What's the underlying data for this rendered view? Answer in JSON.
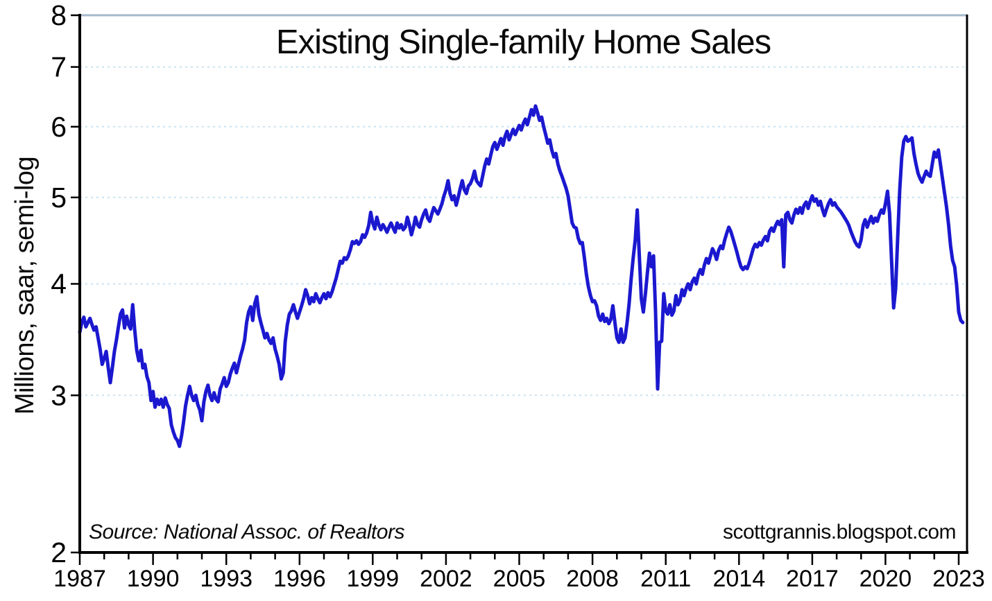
{
  "figure": {
    "title": "Existing Single-family Home Sales",
    "y_axis_label": "Millions, saar, semi-log",
    "source_note": "Source:  National Assoc. of Realtors",
    "site_credit": "scottgrannis.blogspot.com"
  },
  "chart_data": {
    "type": "line",
    "title": "Existing Single-family Home Sales",
    "xlabel": "",
    "ylabel": "Millions, saar, semi-log",
    "y_scale": "log",
    "ylim": [
      2,
      8
    ],
    "xlim": [
      1987,
      2023.34
    ],
    "y_ticks": [
      2,
      3,
      4,
      5,
      6,
      7,
      8
    ],
    "y_gridlines_dashed": [
      3,
      4,
      5,
      6,
      7
    ],
    "y_top_frame_value": 8,
    "x_minor_tick_step_years": 1,
    "x_label_years": [
      1987,
      1990,
      1993,
      1996,
      1999,
      2002,
      2005,
      2008,
      2011,
      2014,
      2017,
      2020,
      2023
    ],
    "grid": true,
    "legend_position": "none",
    "annotations": [
      "Source:  National Assoc. of Realtors",
      "scottgrannis.blogspot.com"
    ],
    "colors": {
      "line": "#1b18cf",
      "grid_dashed": "#c9e2f0",
      "frame_top": "#a6b9cb",
      "axis": "#000000",
      "text": "#000000",
      "background": "#ffffff"
    },
    "series": [
      {
        "name": "Existing single-family home sales (millions, saar)",
        "frequency": "monthly",
        "start_year": 1987,
        "values_monthly_by_year": [
          [
            3.53,
            3.62,
            3.67,
            3.58,
            3.62,
            3.66,
            3.6,
            3.55,
            3.58,
            3.48,
            3.38,
            3.25
          ],
          [
            3.3,
            3.36,
            3.22,
            3.1,
            3.22,
            3.36,
            3.46,
            3.58,
            3.7,
            3.74,
            3.57,
            3.68
          ],
          [
            3.6,
            3.56,
            3.79,
            3.55,
            3.37,
            3.28,
            3.37,
            3.22,
            3.25,
            3.15,
            3.1,
            2.96
          ],
          [
            3.03,
            2.91,
            2.97,
            2.93,
            2.97,
            2.91,
            2.98,
            2.93,
            2.9,
            2.78,
            2.73,
            2.69
          ],
          [
            2.67,
            2.63,
            2.7,
            2.8,
            2.92,
            3.0,
            3.07,
            3.0,
            2.96,
            3.0,
            2.93,
            2.89
          ],
          [
            2.81,
            2.95,
            3.03,
            3.08,
            3.0,
            2.96,
            3.02,
            2.97,
            2.95,
            3.05,
            3.09,
            3.14
          ],
          [
            3.07,
            3.1,
            3.17,
            3.22,
            3.26,
            3.18,
            3.25,
            3.32,
            3.38,
            3.46,
            3.62,
            3.72
          ],
          [
            3.77,
            3.64,
            3.8,
            3.87,
            3.7,
            3.62,
            3.55,
            3.48,
            3.52,
            3.46,
            3.43,
            3.48
          ],
          [
            3.38,
            3.32,
            3.25,
            3.13,
            3.18,
            3.45,
            3.6,
            3.7,
            3.73,
            3.79,
            3.72,
            3.66
          ],
          [
            3.72,
            3.78,
            3.85,
            3.94,
            3.88,
            3.8,
            3.86,
            3.82,
            3.9,
            3.85,
            3.81,
            3.86
          ],
          [
            3.9,
            3.85,
            3.91,
            3.87,
            3.92,
            3.99,
            4.06,
            4.15,
            4.24,
            4.22,
            4.28,
            4.26
          ],
          [
            4.3,
            4.37,
            4.46,
            4.44,
            4.47,
            4.43,
            4.46,
            4.54,
            4.51,
            4.56,
            4.65,
            4.81
          ],
          [
            4.68,
            4.61,
            4.75,
            4.66,
            4.6,
            4.66,
            4.62,
            4.57,
            4.63,
            4.68,
            4.62,
            4.57
          ],
          [
            4.68,
            4.62,
            4.66,
            4.6,
            4.63,
            4.75,
            4.66,
            4.54,
            4.63,
            4.75,
            4.66,
            4.63
          ],
          [
            4.72,
            4.79,
            4.84,
            4.74,
            4.7,
            4.79,
            4.87,
            4.83,
            4.79,
            4.85,
            4.92,
            5.02
          ],
          [
            5.1,
            5.22,
            5.05,
            4.97,
            5.02,
            4.9,
            5.0,
            5.12,
            5.22,
            5.1,
            5.05,
            5.15
          ],
          [
            5.18,
            5.25,
            5.35,
            5.22,
            5.18,
            5.15,
            5.28,
            5.42,
            5.52,
            5.45,
            5.58,
            5.7
          ],
          [
            5.76,
            5.66,
            5.74,
            5.82,
            5.72,
            5.85,
            5.93,
            5.8,
            5.88,
            5.96,
            5.88,
            5.95
          ],
          [
            6.02,
            5.95,
            6.05,
            6.12,
            6.03,
            6.15,
            6.27,
            6.18,
            6.33,
            6.22,
            6.1,
            6.15
          ],
          [
            6.0,
            5.88,
            5.75,
            5.8,
            5.65,
            5.55,
            5.6,
            5.45,
            5.35,
            5.28,
            5.2,
            5.12
          ],
          [
            5.02,
            4.85,
            4.68,
            4.63,
            4.62,
            4.5,
            4.44,
            4.45,
            4.28,
            4.1,
            3.97,
            3.88
          ],
          [
            3.82,
            3.83,
            3.78,
            3.68,
            3.64,
            3.7,
            3.63,
            3.66,
            3.61,
            3.65,
            3.78,
            3.62
          ],
          [
            3.48,
            3.44,
            3.56,
            3.44,
            3.48,
            3.62,
            3.8,
            4.05,
            4.28,
            4.48,
            4.84,
            4.3
          ],
          [
            3.85,
            3.72,
            3.9,
            4.12,
            4.33,
            4.18,
            4.3,
            3.72,
            3.05,
            3.44,
            3.45,
            3.9
          ],
          [
            3.73,
            3.7,
            3.79,
            3.69,
            3.73,
            3.88,
            3.79,
            3.83,
            3.94,
            3.88,
            3.95,
            4.0
          ],
          [
            3.94,
            4.02,
            4.06,
            4.0,
            4.1,
            4.15,
            4.1,
            4.2,
            4.27,
            4.22,
            4.3,
            4.38
          ],
          [
            4.33,
            4.26,
            4.36,
            4.41,
            4.38,
            4.48,
            4.56,
            4.63,
            4.58,
            4.5,
            4.42,
            4.34
          ],
          [
            4.25,
            4.18,
            4.15,
            4.18,
            4.16,
            4.22,
            4.3,
            4.38,
            4.43,
            4.4,
            4.45,
            4.42
          ],
          [
            4.48,
            4.52,
            4.47,
            4.58,
            4.62,
            4.58,
            4.65,
            4.7,
            4.66,
            4.72,
            4.18,
            4.78
          ],
          [
            4.81,
            4.72,
            4.68,
            4.78,
            4.85,
            4.8,
            4.87,
            4.8,
            4.9,
            4.94,
            4.86,
            4.95
          ],
          [
            5.02,
            4.95,
            4.98,
            4.9,
            4.95,
            4.85,
            4.77,
            4.85,
            4.92,
            4.97,
            4.9,
            4.93
          ],
          [
            4.88,
            4.85,
            4.82,
            4.78,
            4.74,
            4.7,
            4.65,
            4.58,
            4.52,
            4.46,
            4.42,
            4.4
          ],
          [
            4.48,
            4.65,
            4.72,
            4.63,
            4.7,
            4.76,
            4.68,
            4.74,
            4.7,
            4.78,
            4.84,
            4.8
          ],
          [
            4.92,
            5.08,
            4.8,
            4.25,
            3.76,
            3.95,
            4.5,
            5.1,
            5.55,
            5.78,
            5.85,
            5.78
          ],
          [
            5.8,
            5.83,
            5.6,
            5.45,
            5.32,
            5.25,
            5.2,
            5.28,
            5.35,
            5.3,
            5.28,
            5.45
          ],
          [
            5.62,
            5.55,
            5.65,
            5.45,
            5.25,
            5.06,
            4.88,
            4.66,
            4.41,
            4.25,
            4.18,
            3.98
          ],
          [
            3.72,
            3.64,
            3.62
          ]
        ]
      }
    ]
  }
}
